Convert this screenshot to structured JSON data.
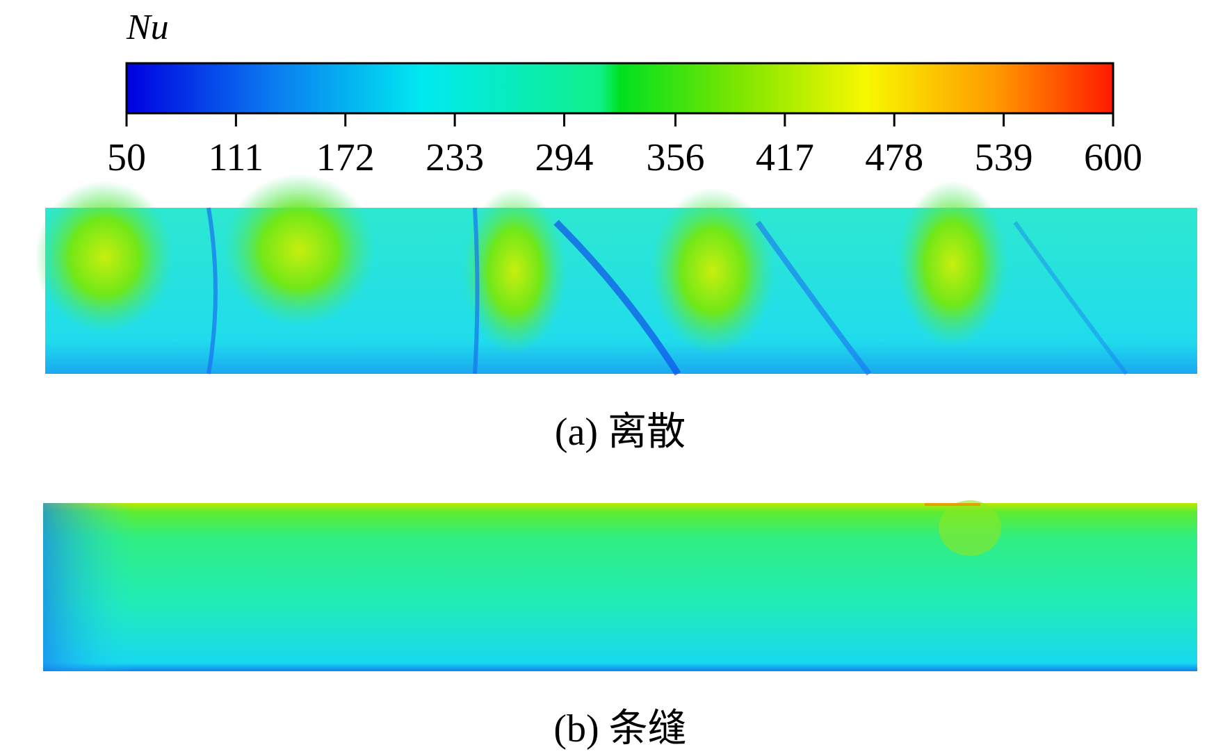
{
  "colorbar": {
    "label": "Nu",
    "range": [
      50,
      600
    ],
    "ticks": [
      50,
      111,
      172,
      233,
      294,
      356,
      417,
      478,
      539,
      600
    ]
  },
  "panels": [
    {
      "caption": "(a) 离散"
    },
    {
      "caption": "(b) 条缝"
    }
  ]
}
